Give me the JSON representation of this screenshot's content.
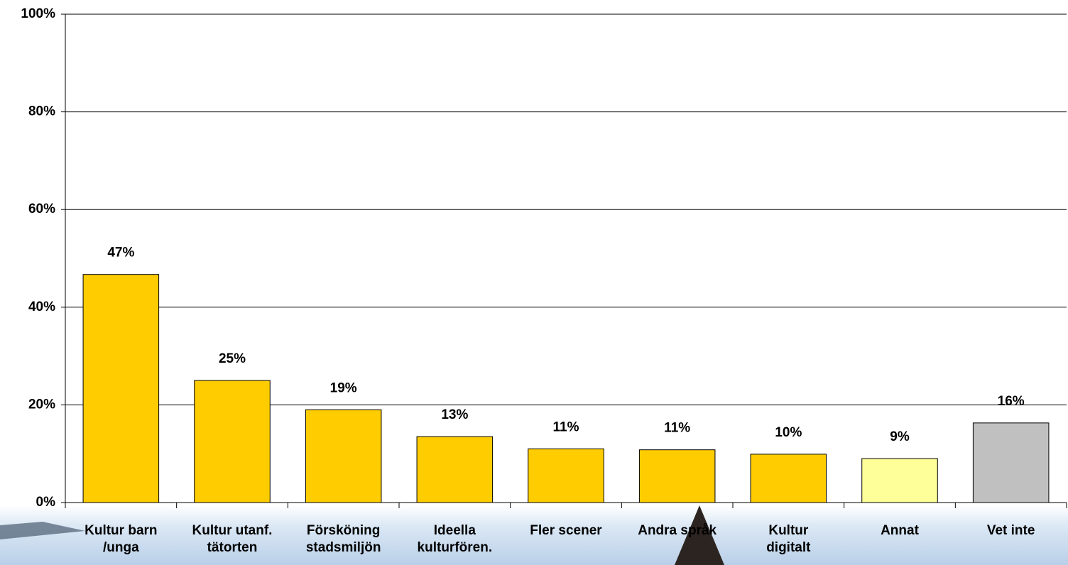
{
  "chart_data": {
    "type": "bar",
    "categories": [
      "Kultur barn\n/unga",
      "Kultur utanf.\ntätorten",
      "Försköning\nstadsmiljön",
      "Ideella\nkulturfören.",
      "Fler scener",
      "Andra språk",
      "Kultur\ndigitalt",
      "Annat",
      "Vet inte"
    ],
    "values": [
      46.7,
      25.0,
      19.0,
      13.5,
      11.0,
      10.8,
      9.9,
      9.0,
      16.3
    ],
    "value_labels": [
      "47%",
      "25%",
      "19%",
      "13%",
      "11%",
      "11%",
      "10%",
      "9%",
      "16%"
    ],
    "colors": [
      "#ffcc00",
      "#ffcc00",
      "#ffcc00",
      "#ffcc00",
      "#ffcc00",
      "#ffcc00",
      "#ffcc00",
      "#ffff99",
      "#c0c0c0"
    ],
    "ylim": [
      0,
      100
    ],
    "yticks": [
      {
        "value": 0,
        "label": "0%"
      },
      {
        "value": 20,
        "label": "20%"
      },
      {
        "value": 40,
        "label": "40%"
      },
      {
        "value": 60,
        "label": "60%"
      },
      {
        "value": 80,
        "label": "80%"
      },
      {
        "value": 100,
        "label": "100%"
      }
    ],
    "grid": true
  }
}
